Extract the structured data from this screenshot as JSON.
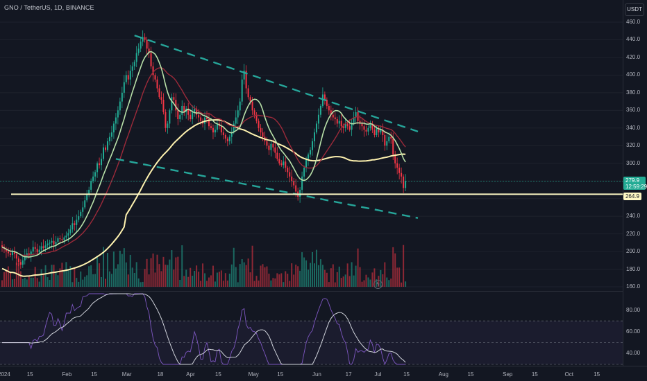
{
  "header": {
    "symbol_info": "GNO / TetherUS, 1D, BINANCE",
    "currency": "USDT"
  },
  "price_axis": {
    "ticks": [
      "460.0",
      "440.0",
      "420.0",
      "400.0",
      "380.0",
      "360.0",
      "340.0",
      "320.0",
      "300.0",
      "280.0",
      "260.0",
      "240.0",
      "220.0",
      "200.0",
      "180.0",
      "160.0"
    ]
  },
  "rsi_axis": {
    "ticks": [
      "80.00",
      "60.00",
      "40.00"
    ]
  },
  "time_axis": {
    "ticks": [
      "2024",
      "15",
      "Feb",
      "15",
      "Mar",
      "18",
      "Apr",
      "15",
      "May",
      "15",
      "Jun",
      "17",
      "Jul",
      "15",
      "Aug",
      "15",
      "Sep",
      "15",
      "Oct",
      "15"
    ]
  },
  "last_price": {
    "value": "279.9",
    "countdown": "12:59:29",
    "color": "#22ab94"
  },
  "support_level": {
    "value": "264.9",
    "color": "#fff9c4"
  },
  "colors": {
    "up": "#22ab94",
    "down": "#f23645",
    "ma_short": "#b8e0a8",
    "ma_mid": "#9c2a3a",
    "ma_long": "#fff3b0",
    "trendline": "#26a69a",
    "rsi": "#7e57c2"
  },
  "chart_data": {
    "type": "candlestick",
    "symbol": "GNO / TetherUS",
    "interval": "1D",
    "exchange": "BINANCE",
    "y_unit": "USDT",
    "price_ylim": [
      160,
      460
    ],
    "start_date": "2024-01-01",
    "closes": [
      205,
      203,
      200,
      198,
      196,
      200,
      197,
      192,
      188,
      185,
      190,
      195,
      198,
      196,
      200,
      205,
      203,
      199,
      202,
      206,
      204,
      207,
      209,
      210,
      212,
      208,
      211,
      215,
      214,
      213,
      216,
      218,
      221,
      225,
      232,
      230,
      236,
      240,
      245,
      250,
      258,
      265,
      270,
      280,
      285,
      290,
      300,
      298,
      305,
      318,
      315,
      325,
      330,
      335,
      345,
      352,
      360,
      370,
      380,
      392,
      400,
      395,
      405,
      410,
      415,
      425,
      430,
      438,
      443,
      440,
      430,
      425,
      410,
      400,
      395,
      385,
      375,
      372,
      358,
      340,
      345,
      360,
      375,
      372,
      360,
      350,
      355,
      365,
      358,
      362,
      355,
      350,
      358,
      362,
      355,
      352,
      348,
      345,
      352,
      350,
      342,
      340,
      335,
      338,
      345,
      342,
      335,
      332,
      328,
      325,
      330,
      335,
      345,
      352,
      360,
      370,
      395,
      405,
      385,
      375,
      370,
      360,
      355,
      348,
      340,
      335,
      330,
      325,
      320,
      315,
      322,
      318,
      312,
      305,
      300,
      298,
      302,
      295,
      290,
      285,
      280,
      275,
      268,
      262,
      270,
      285,
      295,
      305,
      310,
      315,
      325,
      335,
      345,
      355,
      365,
      378,
      372,
      365,
      360,
      355,
      352,
      350,
      345,
      348,
      342,
      340,
      345,
      342,
      338,
      346,
      352,
      358,
      348,
      345,
      342,
      338,
      336,
      340,
      345,
      338,
      332,
      340,
      335,
      338,
      332,
      320,
      325,
      330,
      328,
      310,
      300,
      295,
      289,
      285,
      272,
      279.9
    ],
    "volume_note": "volume histogram shown in lower part of price pane",
    "ma_short_label": "",
    "ma_mid_label": "",
    "ma_long_label": "",
    "horizontal_level": 264.9,
    "trendlines": [
      {
        "name": "",
        "from": {
          "date": "2024-03-05",
          "price": 445
        },
        "to": {
          "date": "2024-07-20",
          "price": 336
        }
      },
      {
        "name": "",
        "from": {
          "date": "2024-02-25",
          "price": 305
        },
        "to": {
          "date": "2024-07-20",
          "price": 238
        }
      }
    ],
    "rsi_ylim": [
      30,
      95
    ],
    "rsi_levels": [
      70,
      50,
      30
    ]
  }
}
